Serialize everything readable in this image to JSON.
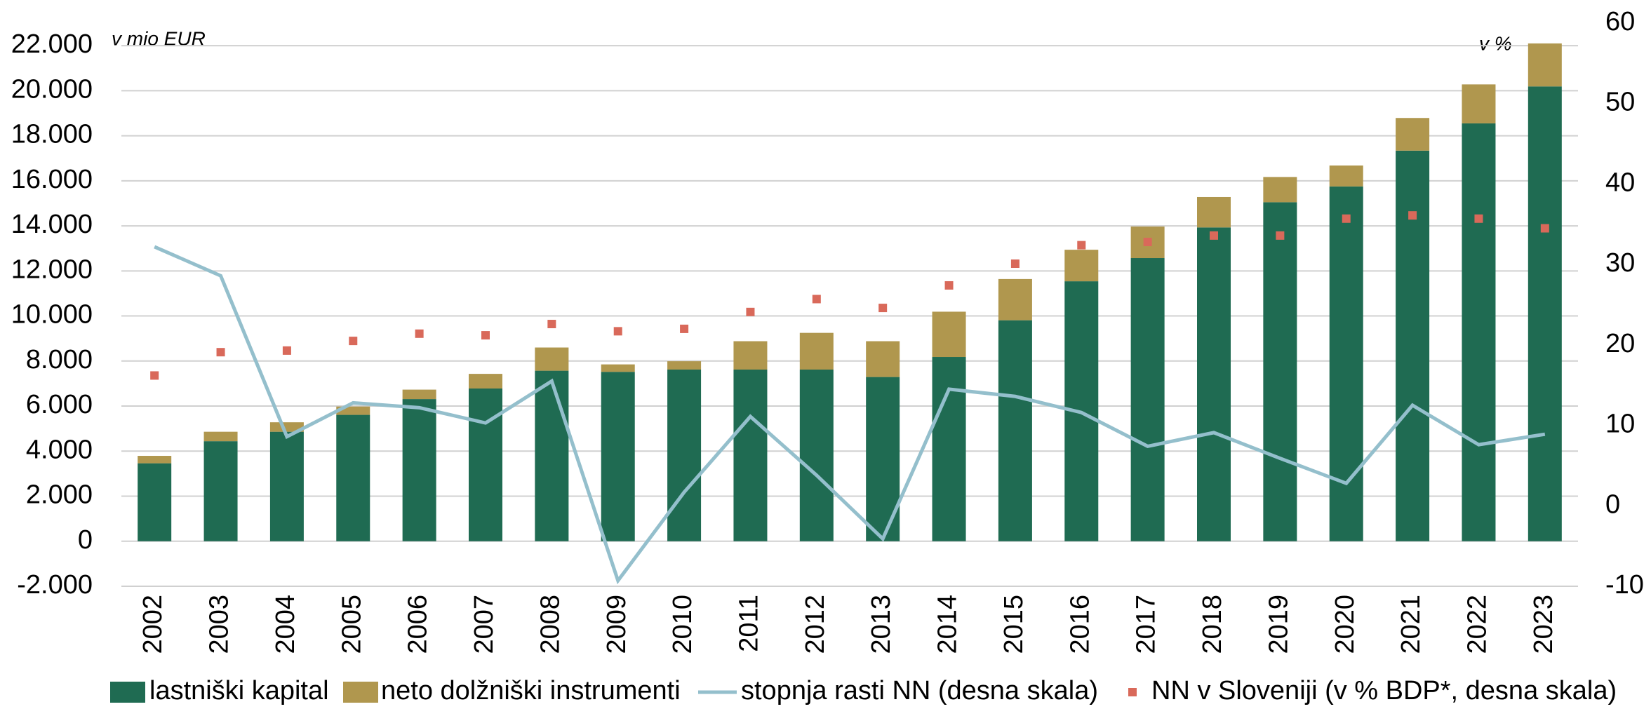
{
  "chart_data": {
    "type": "bar",
    "stacked": true,
    "categories": [
      "2002",
      "2003",
      "2004",
      "2005",
      "2006",
      "2007",
      "2008",
      "2009",
      "2010",
      "2011",
      "2012",
      "2013",
      "2014",
      "2015",
      "2016",
      "2017",
      "2018",
      "2019",
      "2020",
      "2021",
      "2022",
      "2023"
    ],
    "y_unit_label": "v mio EUR",
    "y2_unit_label": "v %",
    "series": [
      {
        "name": "lastniški kapital",
        "type": "bar",
        "color": "#1f6b52",
        "values": [
          3460,
          4440,
          4860,
          5610,
          6310,
          6780,
          7570,
          7520,
          7620,
          7620,
          7620,
          7290,
          8180,
          9810,
          11540,
          12570,
          13930,
          15050,
          15750,
          17340,
          18550,
          20190
        ]
      },
      {
        "name": "neto dolžniški instrumenti",
        "type": "bar",
        "color": "#b0974e",
        "values": [
          330,
          420,
          420,
          370,
          420,
          650,
          1030,
          330,
          370,
          1260,
          1630,
          1590,
          2010,
          1830,
          1400,
          1400,
          1350,
          1120,
          930,
          1450,
          1730,
          1910
        ]
      },
      {
        "name": "stopnja rasti NN (desna skala)",
        "type": "line",
        "axis": "y2",
        "color": "#94bfcc",
        "values": [
          32.2,
          28.6,
          8.6,
          12.8,
          12.2,
          10.3,
          15.5,
          -9.3,
          1.7,
          11.1,
          3.8,
          -4.1,
          14.5,
          13.6,
          11.6,
          7.4,
          9.1,
          5.9,
          2.8,
          12.5,
          7.6,
          8.9
        ]
      },
      {
        "name": "NN v Sloveniji (v % BDP*, desna skala)",
        "type": "scatter",
        "axis": "y2",
        "color": "#d9695a",
        "values": [
          16.2,
          19.1,
          19.3,
          20.5,
          21.4,
          21.2,
          22.6,
          21.7,
          22.0,
          24.1,
          25.7,
          24.6,
          27.4,
          30.1,
          32.4,
          32.8,
          33.6,
          33.6,
          35.7,
          36.1,
          35.7,
          34.5
        ]
      }
    ],
    "ylim": [
      -2000,
      23000
    ],
    "yticks": [
      {
        "value": -2000,
        "label": "-2.000"
      },
      0,
      {
        "value": 2000,
        "label": "2.000"
      },
      {
        "value": 4000,
        "label": "4.000"
      },
      {
        "value": 6000,
        "label": "6.000"
      },
      {
        "value": 8000,
        "label": "8.000"
      },
      {
        "value": 10000,
        "label": "10.000"
      },
      {
        "value": 12000,
        "label": "12.000"
      },
      {
        "value": 14000,
        "label": "14.000"
      },
      {
        "value": 16000,
        "label": "16.000"
      },
      {
        "value": 18000,
        "label": "18.000"
      },
      {
        "value": 20000,
        "label": "20.000"
      },
      {
        "value": 22000,
        "label": "22.000"
      }
    ],
    "y2lim": [
      -10,
      60
    ],
    "y2ticks": [
      -10,
      0,
      10,
      20,
      30,
      40,
      50,
      60
    ],
    "grid": true,
    "legend": "bottom"
  }
}
